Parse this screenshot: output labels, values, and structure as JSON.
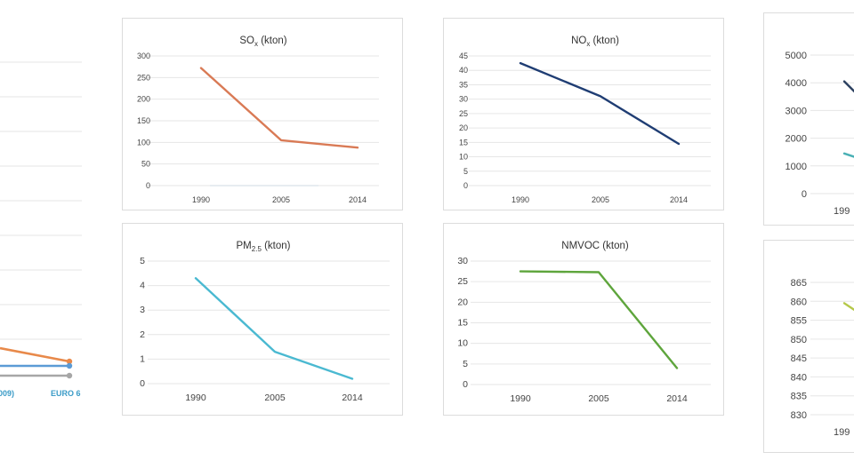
{
  "colors": {
    "so2": "#d97a55",
    "nox": "#1f3d73",
    "pm": "#4ab9d1",
    "nmvoc": "#5ea53c",
    "left_orange": "#e8894a",
    "left_blue": "#5b9bd5",
    "left_gray": "#a6a6a6",
    "right_dark": "#2a3f5f",
    "right_teal": "#4ab0b5",
    "right_yellowgreen": "#b5c84a"
  },
  "left_partial": {
    "x_labels": [
      "009)",
      "EURO 6"
    ]
  },
  "chart_data": [
    {
      "id": "sox",
      "type": "line",
      "title": "SO",
      "title_sub": "x",
      "title_suffix": " (kton)",
      "categories": [
        "1990",
        "2005",
        "2014"
      ],
      "values": [
        272,
        105,
        88
      ],
      "ylim": [
        0,
        300
      ],
      "yticks": [
        "300",
        "250",
        "200",
        "150",
        "100",
        "50",
        "0"
      ],
      "grid": true
    },
    {
      "id": "nox",
      "type": "line",
      "title": "NO",
      "title_sub": "x",
      "title_suffix": " (kton)",
      "categories": [
        "1990",
        "2005",
        "2014"
      ],
      "values": [
        42.5,
        31,
        14.5
      ],
      "ylim": [
        0,
        45
      ],
      "yticks": [
        "45",
        "40",
        "35",
        "30",
        "25",
        "20",
        "15",
        "10",
        "5",
        "0"
      ],
      "grid": true
    },
    {
      "id": "pm25",
      "type": "line",
      "title": "PM",
      "title_sub": "2.5",
      "title_suffix": " (kton)",
      "categories": [
        "1990",
        "2005",
        "2014"
      ],
      "values": [
        4.3,
        1.3,
        0.2
      ],
      "ylim": [
        0,
        5
      ],
      "yticks": [
        "5",
        "4",
        "3",
        "2",
        "1",
        "0"
      ],
      "grid": true
    },
    {
      "id": "nmvoc",
      "type": "line",
      "title": "NMVOC (kton)",
      "title_sub": "",
      "title_suffix": "",
      "categories": [
        "1990",
        "2005",
        "2014"
      ],
      "values": [
        27.5,
        27.3,
        4
      ],
      "ylim": [
        0,
        30
      ],
      "yticks": [
        "30",
        "25",
        "20",
        "15",
        "10",
        "5",
        "0"
      ],
      "grid": true
    },
    {
      "id": "right_top",
      "type": "line",
      "categories": [
        "199"
      ],
      "yticks": [
        "5000",
        "4000",
        "3000",
        "2000",
        "1000",
        "0"
      ],
      "ylim": [
        0,
        5000
      ],
      "series": [
        {
          "values": [
            4050
          ]
        },
        {
          "values": [
            1450
          ]
        }
      ],
      "grid": true
    },
    {
      "id": "right_bottom",
      "type": "line",
      "categories": [
        "199"
      ],
      "yticks": [
        "865",
        "860",
        "855",
        "850",
        "845",
        "840",
        "835",
        "830"
      ],
      "ylim": [
        830,
        865
      ],
      "series": [
        {
          "values": [
            859.5
          ]
        }
      ],
      "grid": true
    }
  ]
}
